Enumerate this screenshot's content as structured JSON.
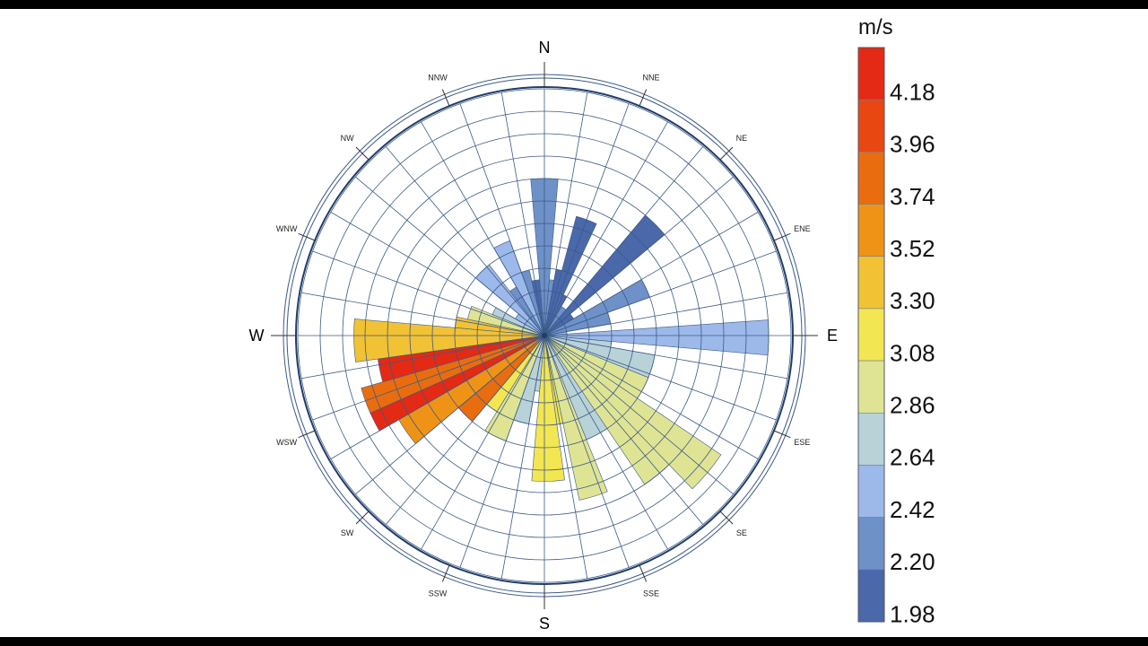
{
  "chart_data": {
    "type": "wind-rose",
    "directions": [
      "N",
      "NNE",
      "NE",
      "ENE",
      "E",
      "ESE",
      "SE",
      "SSE",
      "S",
      "SSW",
      "SW",
      "WSW",
      "W",
      "WNW",
      "NW",
      "NNW"
    ],
    "direction_labels_major": [
      "N",
      "E",
      "S",
      "W"
    ],
    "radial_rings": 11,
    "sector_edges_deg": [
      0,
      5,
      10,
      15,
      20,
      25,
      30,
      35,
      40,
      45,
      50,
      55,
      60,
      65,
      70,
      75,
      80,
      85,
      90,
      95,
      100,
      105,
      110,
      115,
      120,
      125,
      130,
      135,
      140,
      145,
      150,
      155,
      160,
      165,
      170,
      175,
      180,
      185,
      190,
      195,
      200,
      205,
      210,
      215,
      220,
      225,
      230,
      235,
      240,
      245,
      250,
      255,
      260,
      265,
      270,
      275,
      280,
      285,
      290,
      295,
      300,
      305,
      310,
      315,
      320,
      325,
      330,
      335,
      340,
      345,
      350,
      355
    ],
    "bars": [
      {
        "a0": 355,
        "a1": 5,
        "r": 7.0,
        "speed": 2.25
      },
      {
        "a0": 5,
        "a1": 10,
        "r": 2.5,
        "speed": 2.2
      },
      {
        "a0": 10,
        "a1": 15,
        "r": 3.0,
        "speed": 2.05
      },
      {
        "a0": 15,
        "a1": 25,
        "r": 5.5,
        "speed": 1.98
      },
      {
        "a0": 25,
        "a1": 30,
        "r": 2.0,
        "speed": 2.05
      },
      {
        "a0": 30,
        "a1": 40,
        "r": 1.5,
        "speed": 2.1
      },
      {
        "a0": 40,
        "a1": 50,
        "r": 7.0,
        "speed": 1.98
      },
      {
        "a0": 50,
        "a1": 60,
        "r": 1.5,
        "speed": 2.05
      },
      {
        "a0": 60,
        "a1": 70,
        "r": 5.0,
        "speed": 2.1
      },
      {
        "a0": 70,
        "a1": 80,
        "r": 3.0,
        "speed": 2.15
      },
      {
        "a0": 80,
        "a1": 86,
        "r": 1.0,
        "speed": 2.4
      },
      {
        "a0": 86,
        "a1": 95,
        "r": 10.0,
        "speed": 2.42
      },
      {
        "a0": 95,
        "a1": 100,
        "r": 3.0,
        "speed": 2.55
      },
      {
        "a0": 100,
        "a1": 112,
        "r": 5.0,
        "speed": 2.7
      },
      {
        "a0": 112,
        "a1": 124,
        "r": 5.0,
        "speed": 2.8
      },
      {
        "a0": 124,
        "a1": 136,
        "r": 9.5,
        "speed": 2.95
      },
      {
        "a0": 136,
        "a1": 146,
        "r": 8.0,
        "speed": 2.85
      },
      {
        "a0": 146,
        "a1": 158,
        "r": 5.0,
        "speed": 2.72
      },
      {
        "a0": 158,
        "a1": 168,
        "r": 7.5,
        "speed": 2.9
      },
      {
        "a0": 168,
        "a1": 172,
        "r": 4.0,
        "speed": 3.05
      },
      {
        "a0": 172,
        "a1": 185,
        "r": 6.5,
        "speed": 3.15
      },
      {
        "a0": 185,
        "a1": 190,
        "r": 2.5,
        "speed": 2.7
      },
      {
        "a0": 190,
        "a1": 200,
        "r": 4.0,
        "speed": 2.6
      },
      {
        "a0": 200,
        "a1": 212,
        "r": 5.0,
        "speed": 2.95
      },
      {
        "a0": 212,
        "a1": 220,
        "r": 4.0,
        "speed": 3.0
      },
      {
        "a0": 220,
        "a1": 230,
        "r": 5.0,
        "speed": 3.7
      },
      {
        "a0": 230,
        "a1": 240,
        "r": 7.5,
        "speed": 3.45
      },
      {
        "a0": 240,
        "a1": 246,
        "r": 8.5,
        "speed": 4.2
      },
      {
        "a0": 246,
        "a1": 254,
        "r": 8.5,
        "speed": 3.8
      },
      {
        "a0": 254,
        "a1": 262,
        "r": 7.5,
        "speed": 4.3
      },
      {
        "a0": 262,
        "a1": 275,
        "r": 8.5,
        "speed": 3.4
      },
      {
        "a0": 275,
        "a1": 282,
        "r": 4.0,
        "speed": 3.3
      },
      {
        "a0": 282,
        "a1": 292,
        "r": 3.5,
        "speed": 2.95
      },
      {
        "a0": 292,
        "a1": 300,
        "r": 2.5,
        "speed": 2.65
      },
      {
        "a0": 300,
        "a1": 310,
        "r": 1.5,
        "speed": 2.5
      },
      {
        "a0": 310,
        "a1": 322,
        "r": 4.0,
        "speed": 2.4
      },
      {
        "a0": 322,
        "a1": 330,
        "r": 2.5,
        "speed": 2.3
      },
      {
        "a0": 330,
        "a1": 340,
        "r": 4.5,
        "speed": 2.35
      },
      {
        "a0": 340,
        "a1": 347,
        "r": 3.0,
        "speed": 2.2
      },
      {
        "a0": 347,
        "a1": 355,
        "r": 2.5,
        "speed": 2.0
      }
    ],
    "colorbar": {
      "unit": "m/s",
      "ticks": [
        "4.18",
        "3.96",
        "3.74",
        "3.52",
        "3.30",
        "3.08",
        "2.86",
        "2.64",
        "2.42",
        "2.20",
        "1.98"
      ],
      "colors": [
        "#e42a14",
        "#e84712",
        "#e96d0e",
        "#ef9317",
        "#f2c235",
        "#f3e653",
        "#dfe494",
        "#b8d2d8",
        "#9db9ea",
        "#6e91c8",
        "#4a68aa"
      ]
    }
  }
}
